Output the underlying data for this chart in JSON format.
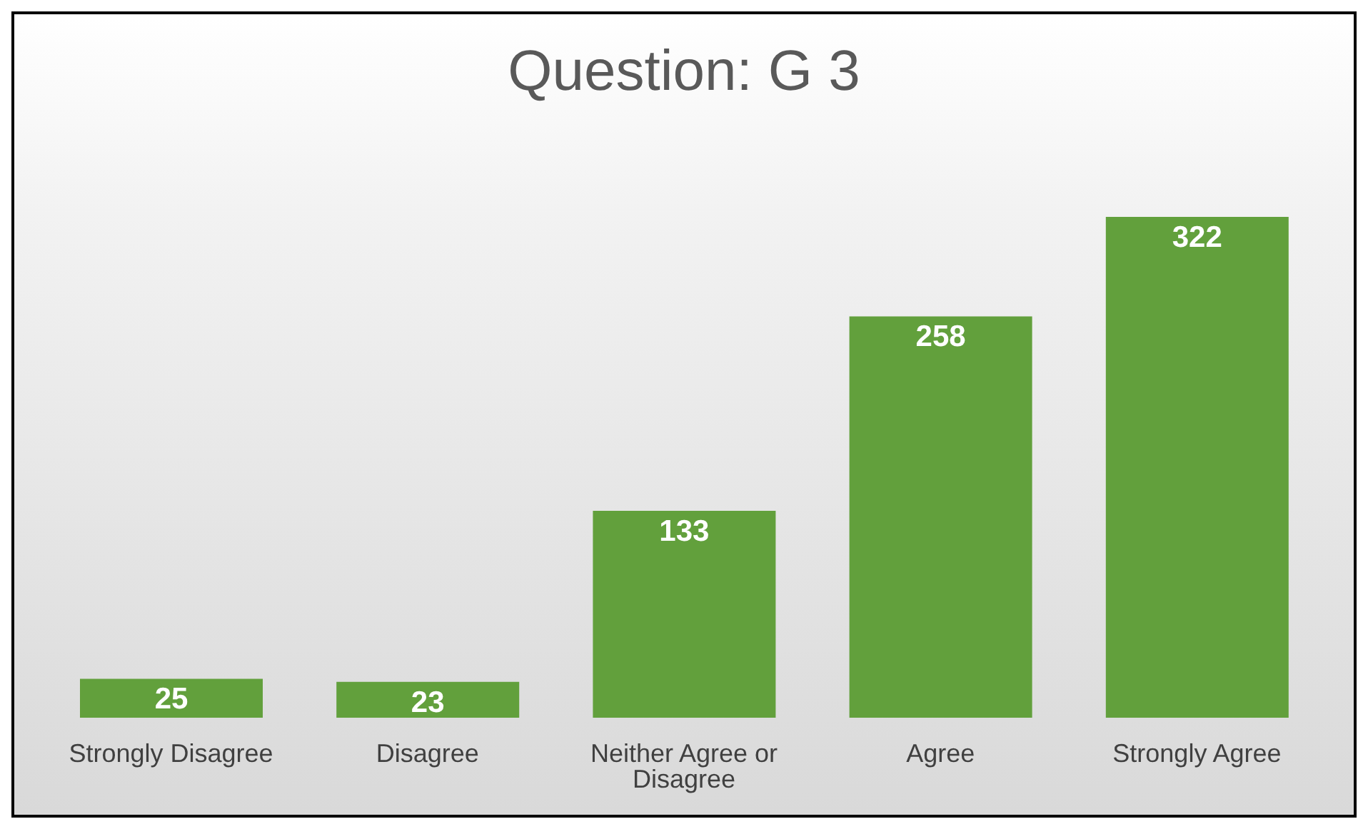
{
  "chart_data": {
    "type": "bar",
    "title": "Question: G 3",
    "categories": [
      "Strongly Disagree",
      "Disagree",
      "Neither Agree or Disagree",
      "Agree",
      "Strongly Agree"
    ],
    "values": [
      25,
      23,
      133,
      258,
      322
    ],
    "color": "#62a03c",
    "data_labels": true,
    "grid": false,
    "legend": false
  }
}
